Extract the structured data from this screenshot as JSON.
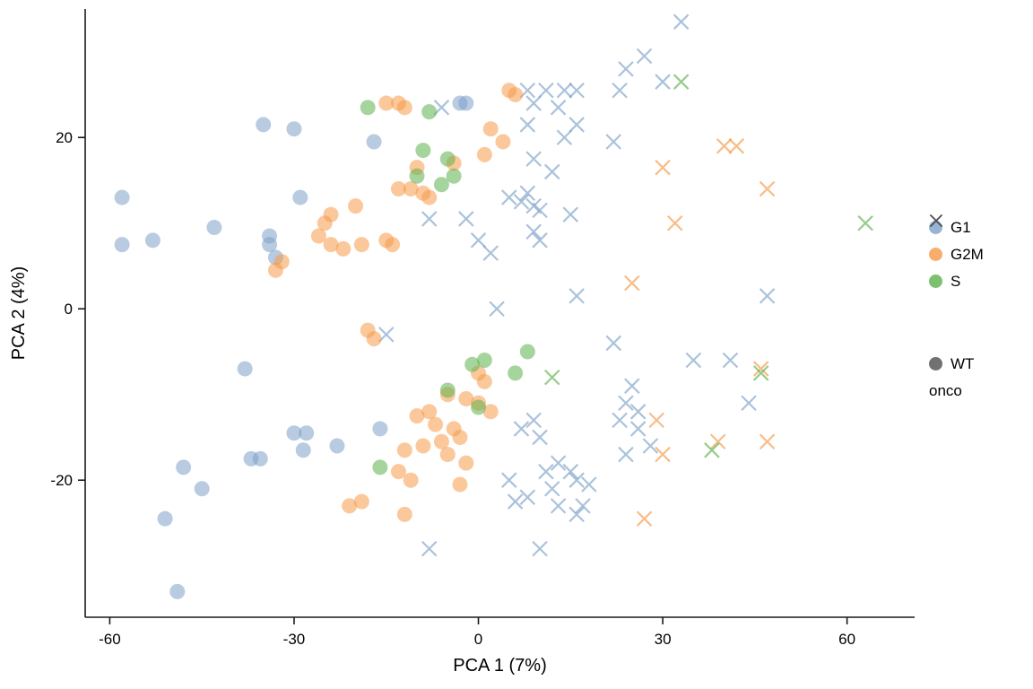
{
  "figure": {
    "title": ""
  },
  "chart_data": {
    "type": "scatter",
    "title": "",
    "xlabel": "PCA 1 (7%)",
    "ylabel": "PCA 2 (4%)",
    "x_axis": {
      "label": "PCA 1 (7%)",
      "ticks": [
        -60,
        -30,
        0,
        30,
        60
      ],
      "range": [
        -64,
        71
      ]
    },
    "y_axis": {
      "label": "PCA 2 (4%)",
      "ticks": [
        -20,
        0,
        20
      ],
      "range": [
        -36,
        35
      ]
    },
    "grid": false,
    "legend_position": "right",
    "colors": {
      "G1": "#7da1c9",
      "G2M": "#f59a49",
      "S": "#5db14c",
      "shape_key": "#4d4d4d"
    },
    "marker": {
      "circle_radius": 8.5,
      "x_half_size": 8,
      "x_stroke_width": 2.2,
      "opacity": 0.55
    },
    "legend": {
      "color": {
        "items": [
          {
            "label": "G1",
            "color": "#7da1c9"
          },
          {
            "label": "G2M",
            "color": "#f59a49"
          },
          {
            "label": "S",
            "color": "#5db14c"
          }
        ]
      },
      "shape": {
        "color": "#4d4d4d",
        "items": [
          {
            "label": "WT",
            "shape": "circle"
          },
          {
            "label": "onco",
            "shape": "x"
          }
        ]
      }
    },
    "series": [
      {
        "name": "G1 WT",
        "phase": "G1",
        "genotype": "WT",
        "shape": "circle",
        "color": "#7da1c9",
        "points": [
          [
            -58,
            13
          ],
          [
            -58,
            7.5
          ],
          [
            -53,
            8
          ],
          [
            -43,
            9.5
          ],
          [
            -35,
            21.5
          ],
          [
            -30,
            21
          ],
          [
            -34,
            8.5
          ],
          [
            -34,
            7.5
          ],
          [
            -33,
            6
          ],
          [
            -29,
            13
          ],
          [
            -17,
            19.5
          ],
          [
            -3,
            24
          ],
          [
            -2,
            24
          ],
          [
            -38,
            -7
          ],
          [
            -48,
            -18.5
          ],
          [
            -45,
            -21
          ],
          [
            -51,
            -24.5
          ],
          [
            -49,
            -33
          ],
          [
            -37,
            -17.5
          ],
          [
            -35.5,
            -17.5
          ],
          [
            -30,
            -14.5
          ],
          [
            -28,
            -14.5
          ],
          [
            -28.5,
            -16.5
          ],
          [
            -23,
            -16
          ],
          [
            -16,
            -14
          ]
        ]
      },
      {
        "name": "G1 onco",
        "phase": "G1",
        "genotype": "onco",
        "shape": "x",
        "color": "#7da1c9",
        "points": [
          [
            33,
            33.5
          ],
          [
            27,
            29.5
          ],
          [
            24,
            28
          ],
          [
            30,
            26.5
          ],
          [
            8,
            25.5
          ],
          [
            11,
            25.5
          ],
          [
            14,
            25.5
          ],
          [
            16,
            25.5
          ],
          [
            23,
            25.5
          ],
          [
            9,
            24
          ],
          [
            13,
            23.5
          ],
          [
            16,
            21.5
          ],
          [
            8,
            21.5
          ],
          [
            14,
            20
          ],
          [
            22,
            19.5
          ],
          [
            9,
            17.5
          ],
          [
            12,
            16
          ],
          [
            -6,
            23.5
          ],
          [
            -8,
            10.5
          ],
          [
            -2,
            10.5
          ],
          [
            0,
            8
          ],
          [
            2,
            6.5
          ],
          [
            5,
            13
          ],
          [
            7,
            12.5
          ],
          [
            8,
            13.5
          ],
          [
            9,
            12
          ],
          [
            10,
            11.5
          ],
          [
            9,
            9
          ],
          [
            10,
            8
          ],
          [
            15,
            11
          ],
          [
            3,
            0
          ],
          [
            16,
            1.5
          ],
          [
            47,
            1.5
          ],
          [
            -15,
            -3
          ],
          [
            22,
            -4
          ],
          [
            35,
            -6
          ],
          [
            41,
            -6
          ],
          [
            25,
            -9
          ],
          [
            24,
            -11
          ],
          [
            26,
            -12
          ],
          [
            23,
            -13
          ],
          [
            26,
            -14
          ],
          [
            28,
            -16
          ],
          [
            24,
            -17
          ],
          [
            44,
            -11
          ],
          [
            9,
            -13
          ],
          [
            7,
            -14
          ],
          [
            10,
            -15
          ],
          [
            13,
            -18
          ],
          [
            15,
            -19
          ],
          [
            16,
            -20
          ],
          [
            12,
            -21
          ],
          [
            8,
            -22
          ],
          [
            6,
            -22.5
          ],
          [
            13,
            -23
          ],
          [
            16,
            -24
          ],
          [
            10,
            -28
          ],
          [
            -8,
            -28
          ],
          [
            5,
            -20
          ],
          [
            11,
            -19
          ],
          [
            18,
            -20.5
          ],
          [
            17,
            -23
          ]
        ]
      },
      {
        "name": "G2M WT",
        "phase": "G2M",
        "genotype": "WT",
        "shape": "circle",
        "color": "#f59a49",
        "points": [
          [
            -15,
            24
          ],
          [
            -13,
            24
          ],
          [
            -12,
            23.5
          ],
          [
            5,
            25.5
          ],
          [
            6,
            25
          ],
          [
            2,
            21
          ],
          [
            4,
            19.5
          ],
          [
            1,
            18
          ],
          [
            -4,
            17
          ],
          [
            -10,
            16.5
          ],
          [
            -11,
            14
          ],
          [
            -13,
            14
          ],
          [
            -9,
            13.5
          ],
          [
            -8,
            13
          ],
          [
            -20,
            12
          ],
          [
            -24,
            11
          ],
          [
            -25,
            10
          ],
          [
            -26,
            8.5
          ],
          [
            -24,
            7.5
          ],
          [
            -22,
            7
          ],
          [
            -19,
            7.5
          ],
          [
            -15,
            8
          ],
          [
            -14,
            7.5
          ],
          [
            -32,
            5.5
          ],
          [
            -33,
            4.5
          ],
          [
            -18,
            -2.5
          ],
          [
            -17,
            -3.5
          ],
          [
            0,
            -7.5
          ],
          [
            1,
            -8.5
          ],
          [
            -5,
            -10
          ],
          [
            -2,
            -10.5
          ],
          [
            0,
            -11
          ],
          [
            2,
            -12
          ],
          [
            -8,
            -12
          ],
          [
            -10,
            -12.5
          ],
          [
            -7,
            -13.5
          ],
          [
            -4,
            -14
          ],
          [
            -3,
            -15
          ],
          [
            -6,
            -15.5
          ],
          [
            -9,
            -16
          ],
          [
            -12,
            -16.5
          ],
          [
            -5,
            -17
          ],
          [
            -2,
            -18
          ],
          [
            -13,
            -19
          ],
          [
            -11,
            -20
          ],
          [
            -3,
            -20.5
          ],
          [
            -21,
            -23
          ],
          [
            -19,
            -22.5
          ],
          [
            -12,
            -24
          ]
        ]
      },
      {
        "name": "G2M onco",
        "phase": "G2M",
        "genotype": "onco",
        "shape": "x",
        "color": "#f59a49",
        "points": [
          [
            30,
            16.5
          ],
          [
            40,
            19
          ],
          [
            42,
            19
          ],
          [
            47,
            14
          ],
          [
            32,
            10
          ],
          [
            25,
            3
          ],
          [
            46,
            -7
          ],
          [
            39,
            -15.5
          ],
          [
            47,
            -15.5
          ],
          [
            29,
            -13
          ],
          [
            30,
            -17
          ],
          [
            27,
            -24.5
          ]
        ]
      },
      {
        "name": "S WT",
        "phase": "S",
        "genotype": "WT",
        "shape": "circle",
        "color": "#5db14c",
        "points": [
          [
            -18,
            23.5
          ],
          [
            -8,
            23
          ],
          [
            -9,
            18.5
          ],
          [
            -10,
            15.5
          ],
          [
            -5,
            17.5
          ],
          [
            -4,
            15.5
          ],
          [
            -6,
            14.5
          ],
          [
            8,
            -5
          ],
          [
            1,
            -6
          ],
          [
            -1,
            -6.5
          ],
          [
            6,
            -7.5
          ],
          [
            -5,
            -9.5
          ],
          [
            0,
            -11.5
          ],
          [
            -16,
            -18.5
          ]
        ]
      },
      {
        "name": "S onco",
        "phase": "S",
        "genotype": "onco",
        "shape": "x",
        "color": "#5db14c",
        "points": [
          [
            33,
            26.5
          ],
          [
            63,
            10
          ],
          [
            12,
            -8
          ],
          [
            46,
            -7.5
          ],
          [
            38,
            -16.5
          ]
        ]
      }
    ]
  }
}
